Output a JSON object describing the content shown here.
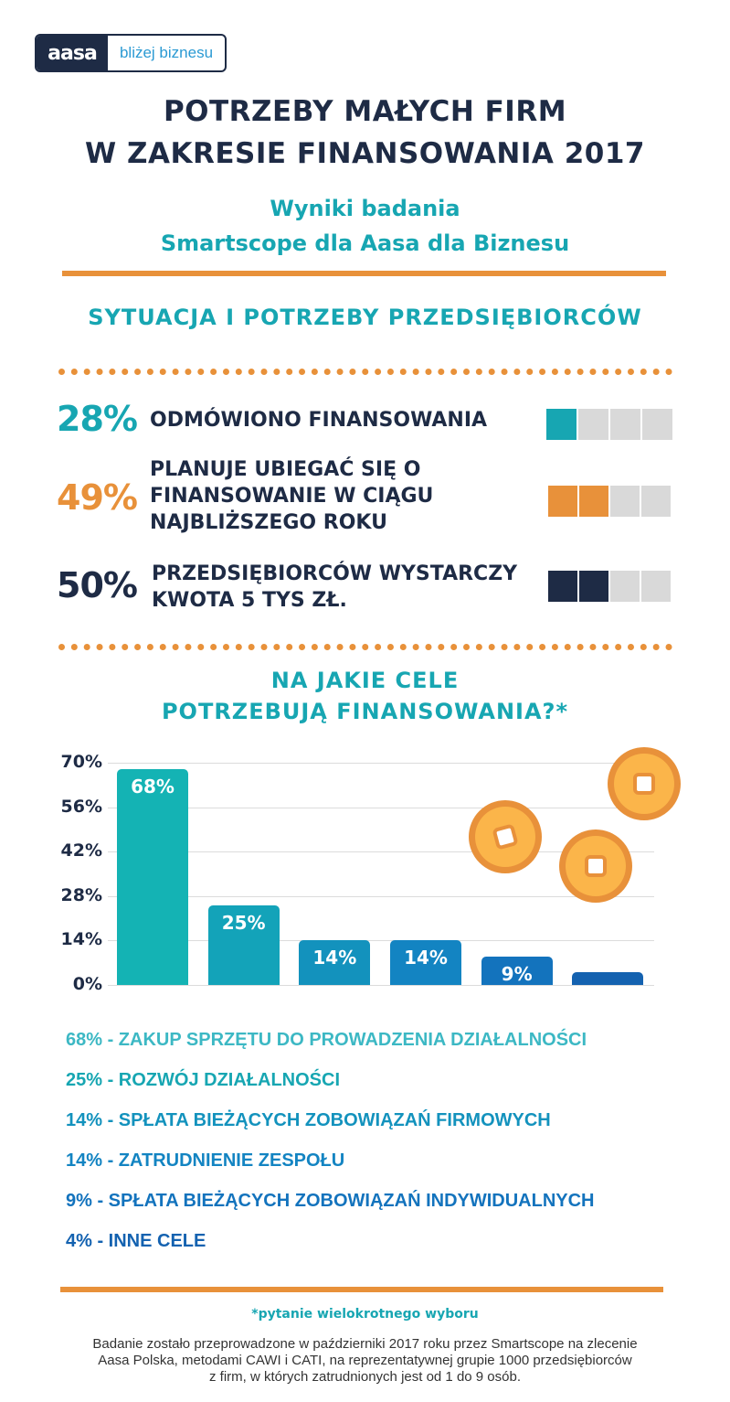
{
  "logo": {
    "brand": "aasa",
    "tagline": "bliżej biznesu"
  },
  "title": {
    "line1": "POTRZEBY MAŁYCH FIRM",
    "line2": "W ZAKRESIE FINANSOWANIA 2017"
  },
  "subtitle": {
    "line1": "Wyniki badania",
    "line2": "Smartscope dla Aasa dla Biznesu"
  },
  "section1": {
    "heading": "SYTUACJA I POTRZEBY PRZEDSIĘBIORCÓW",
    "stats": [
      {
        "percent": "28%",
        "label_lines": [
          "ODMÓWIONO FINANSOWANIA"
        ],
        "color": "#17a6b2",
        "filled_segments": 1,
        "total_segments": 4
      },
      {
        "percent": "49%",
        "label_lines": [
          "PLANUJE UBIEGAĆ SIĘ O",
          "FINANSOWANIE W CIĄGU",
          "NAJBLIŻSZEGO ROKU"
        ],
        "color": "#e8913a",
        "filled_segments": 2,
        "total_segments": 4
      },
      {
        "percent": "50%",
        "label_lines": [
          "PRZEDSIĘBIORCÓW WYSTARCZY",
          "KWOTA 5 TYS ZŁ."
        ],
        "color": "#1e2b45",
        "filled_segments": 2,
        "total_segments": 4
      }
    ]
  },
  "section2": {
    "heading_line1": "NA JAKIE CELE",
    "heading_line2": "POTRZEBUJĄ FINANSOWANIA?*"
  },
  "chart_data": {
    "type": "bar",
    "categories": [
      "ZAKUP SPRZĘTU DO PROWADZENIA DZIAŁALNOŚCI",
      "ROZWÓJ DZIAŁALNOŚCI",
      "SPŁATA BIEŻĄCYCH ZOBOWIĄZAŃ FIRMOWYCH",
      "ZATRUDNIENIE ZESPOŁU",
      "SPŁATA BIEŻĄCYCH ZOBOWIĄZAŃ INDYWIDUALNYCH",
      "INNE CELE"
    ],
    "values": [
      68,
      25,
      14,
      14,
      9,
      4
    ],
    "data_labels": [
      "68%",
      "25%",
      "14%",
      "14%",
      "9%",
      ""
    ],
    "colors": [
      "#14b3b4",
      "#13a3b9",
      "#1392bd",
      "#1384c2",
      "#1373bd",
      "#1462b0"
    ],
    "yticks": [
      "70%",
      "56%",
      "42%",
      "28%",
      "14%",
      "0%"
    ],
    "ylim": [
      0,
      70
    ],
    "grid": true
  },
  "legend": [
    {
      "text": "68% - ZAKUP SPRZĘTU DO PROWADZENIA DZIAŁALNOŚCI",
      "color": "#3cb8c4"
    },
    {
      "text": "25% - ROZWÓJ DZIAŁALNOŚCI",
      "color": "#17a6b2"
    },
    {
      "text": "14% - SPŁATA BIEŻĄCYCH ZOBOWIĄZAŃ FIRMOWYCH",
      "color": "#1392bd"
    },
    {
      "text": "14% - ZATRUDNIENIE ZESPOŁU",
      "color": "#1384c2"
    },
    {
      "text": "9% - SPŁATA BIEŻĄCYCH ZOBOWIĄZAŃ INDYWIDUALNYCH",
      "color": "#1373bd"
    },
    {
      "text": "4% - INNE CELE",
      "color": "#1462b0"
    }
  ],
  "note": "*pytanie wielokrotnego wyboru",
  "footer": {
    "line1": "Badanie zostało przeprowadzone w październiki 2017 roku przez Smartscope na zlecenie",
    "line2": "Aasa Polska, metodami CAWI i CATI, na reprezentatywnej grupie 1000 przedsiębiorców",
    "line3": "z firm, w których zatrudnionych jest od 1 do 9 osób."
  },
  "icons": {
    "coin": "coin-icon"
  }
}
